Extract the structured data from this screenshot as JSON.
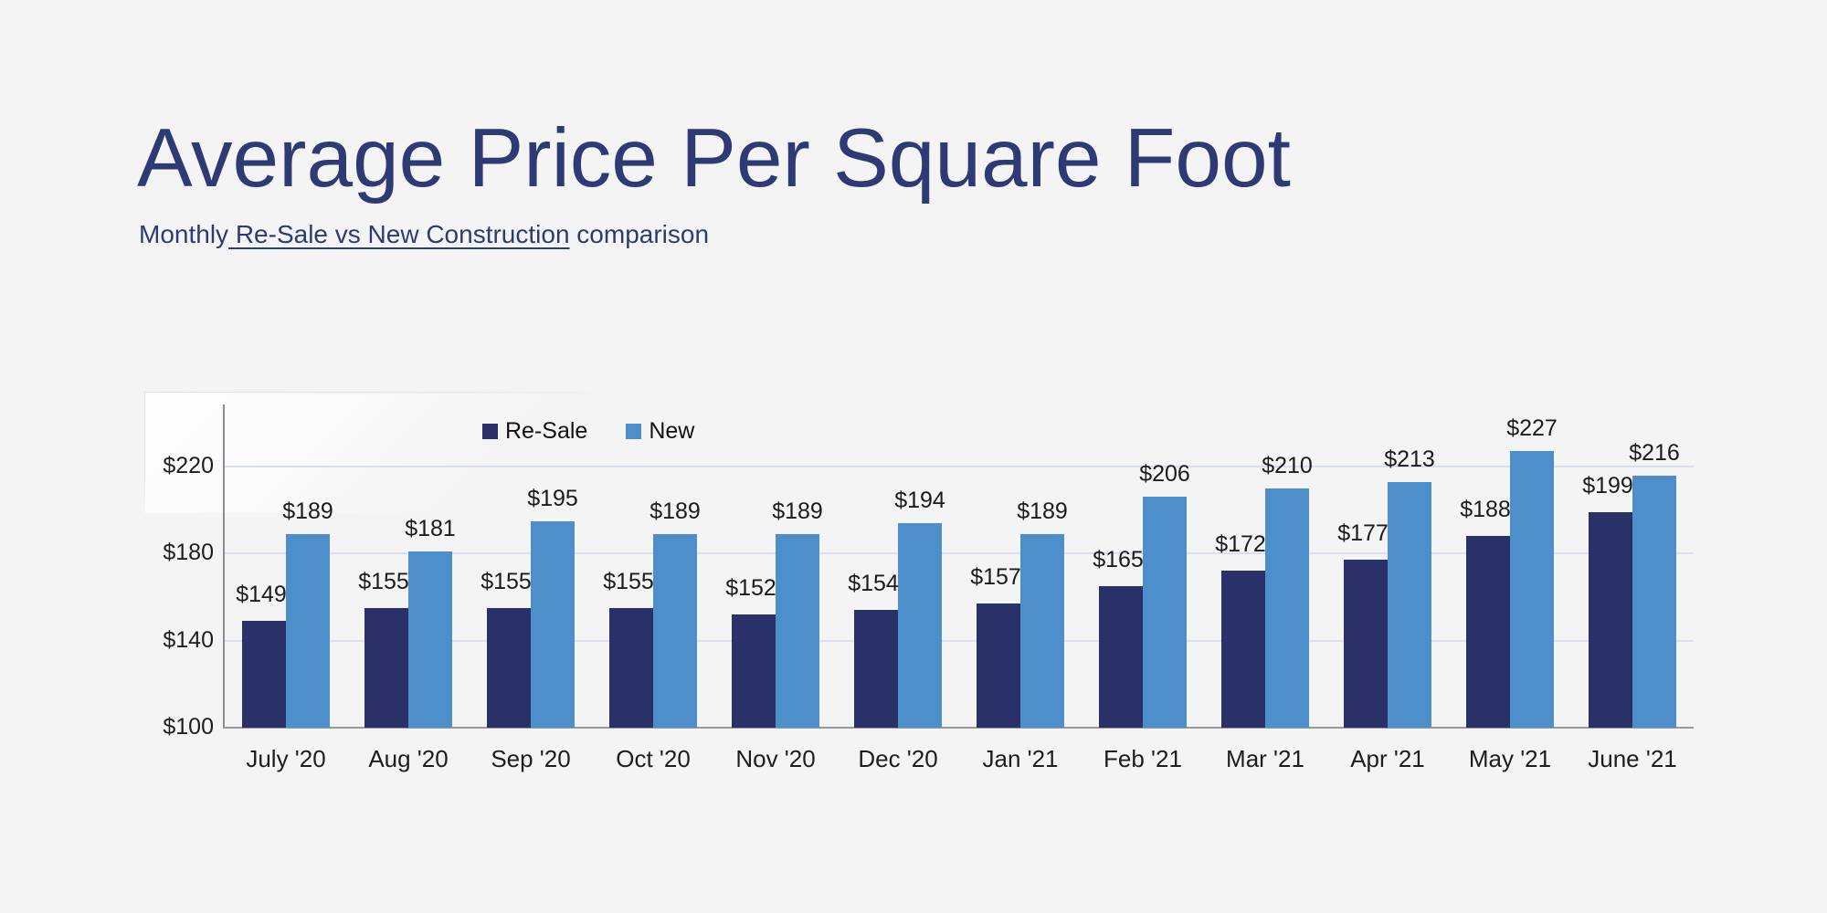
{
  "page": {
    "title": "Average Price Per Square Foot",
    "subtitle": {
      "prefix": "Monthly",
      "underlined": " Re-Sale vs New Construction",
      "suffix": " comparison"
    }
  },
  "colors": {
    "background": "#F5F4F5",
    "heading_navy": "#2E3A73",
    "resale_bar": "#2A3169",
    "new_bar": "#4D8FCB",
    "gridline": "#DADFF0",
    "y_axis_line": "#8C8C90",
    "x_axis_line": "#98989C",
    "tick_text": "#1D1D1D",
    "data_label_text": "#1B1B1B",
    "legend_text": "#111111"
  },
  "chart_data": {
    "type": "bar",
    "title": "Average Price Per Square Foot",
    "subtitle": "Monthly Re-Sale vs New Construction comparison",
    "categories": [
      "July '20",
      "Aug '20",
      "Sep '20",
      "Oct '20",
      "Nov '20",
      "Dec '20",
      "Jan '21",
      "Feb '21",
      "Mar '21",
      "Apr '21",
      "May '21",
      "June '21"
    ],
    "series": [
      {
        "name": "Re-Sale",
        "color": "#2A3169",
        "values": [
          149,
          155,
          155,
          155,
          152,
          154,
          157,
          165,
          172,
          177,
          188,
          199
        ]
      },
      {
        "name": "New",
        "color": "#4D8FCB",
        "values": [
          189,
          181,
          195,
          189,
          189,
          194,
          189,
          206,
          210,
          213,
          227,
          216
        ]
      }
    ],
    "value_prefix": "$",
    "data_labels": true,
    "y_ticks": [
      100,
      140,
      180,
      220
    ],
    "y_tick_prefix": "$",
    "ylim": [
      100,
      250
    ],
    "xlabel": "",
    "ylabel": "",
    "grid": "horizontal",
    "legend_position": "top-inside-left"
  }
}
